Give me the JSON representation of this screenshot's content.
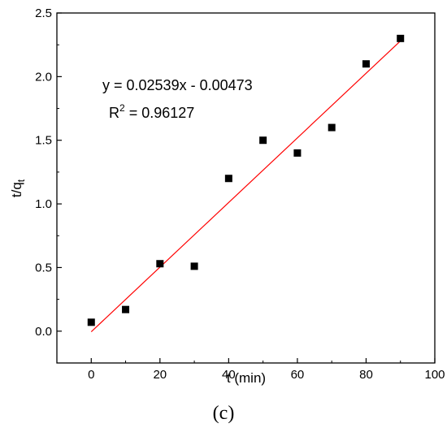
{
  "chart_data": {
    "type": "scatter",
    "title": "",
    "xlabel": "t (min)",
    "ylabel_main": "t/q",
    "ylabel_sub": "t",
    "xlim": [
      -10,
      100
    ],
    "ylim": [
      -0.25,
      2.5
    ],
    "xticks": [
      0,
      20,
      40,
      60,
      80,
      100
    ],
    "xtick_labels": [
      "0",
      "20",
      "40",
      "60",
      "80",
      "100"
    ],
    "yticks": [
      0.0,
      0.5,
      1.0,
      1.5,
      2.0,
      2.5
    ],
    "ytick_labels": [
      "0.0",
      "0.5",
      "1.0",
      "1.5",
      "2.0",
      "2.5"
    ],
    "grid": false,
    "legend": "none",
    "series": [
      {
        "marker": "square",
        "color": "#000000",
        "x": [
          0,
          10,
          20,
          30,
          40,
          50,
          60,
          70,
          80,
          90
        ],
        "y": [
          0.07,
          0.17,
          0.53,
          0.51,
          1.2,
          1.5,
          1.4,
          1.6,
          2.1,
          2.3
        ]
      }
    ],
    "fit_line": {
      "color": "#ff0000",
      "x": [
        0,
        90
      ],
      "slope": 0.02539,
      "intercept": -0.00473
    },
    "annotations": {
      "equation": "y = 0.02539x - 0.00473",
      "r2_prefix": "R",
      "r2_sup": "2",
      "r2_suffix": " = 0.96127"
    }
  },
  "panel_label": "(c)"
}
